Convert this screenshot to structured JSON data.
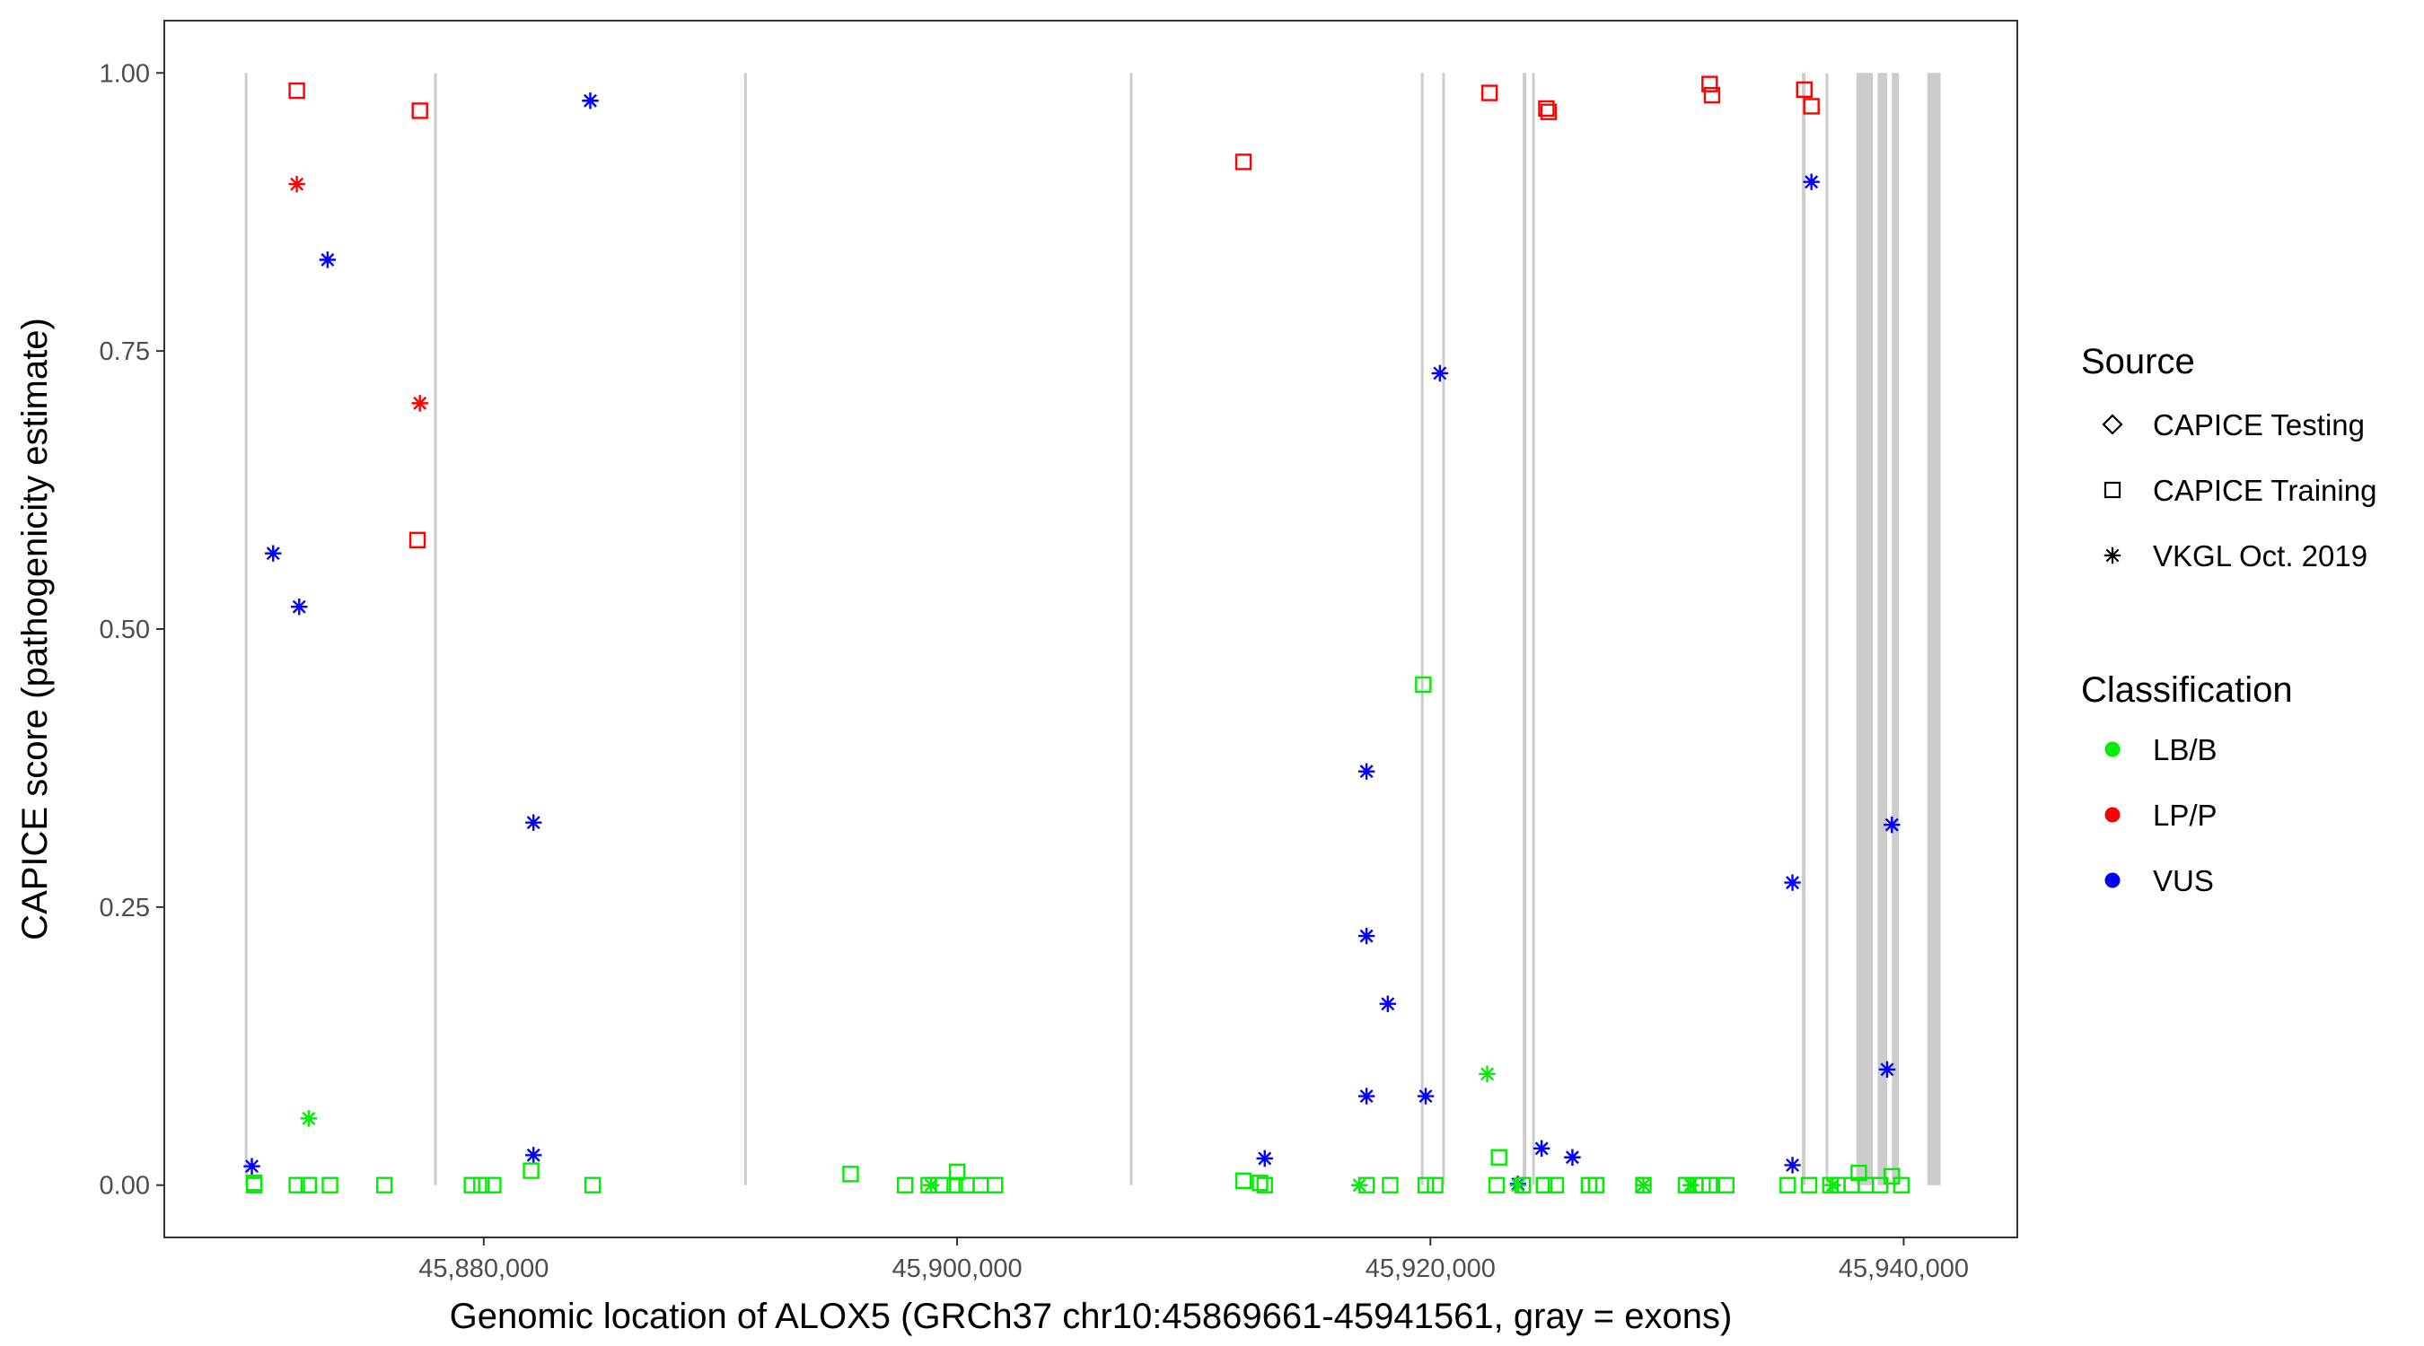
{
  "chart_data": {
    "type": "scatter",
    "title": "",
    "xlabel": "Genomic location of ALOX5 (GRCh37 chr10:45869661-45941561, gray = exons)",
    "ylabel": "CAPICE score (pathogenicity estimate)",
    "xlim": [
      45866500,
      45944800
    ],
    "ylim": [
      -0.047,
      1.047
    ],
    "x_ticks": [
      45880000,
      45900000,
      45920000,
      45940000
    ],
    "x_tick_labels": [
      "45,880,000",
      "45,900,000",
      "45,920,000",
      "45,940,000"
    ],
    "y_ticks": [
      0,
      0.25,
      0.5,
      0.75,
      1
    ],
    "y_tick_labels": [
      "0.00",
      "0.25",
      "0.50",
      "0.75",
      "1.00"
    ],
    "grid": false,
    "exon_color": "#cccccc",
    "exons": [
      [
        45869900,
        45870000
      ],
      [
        45877900,
        45878000
      ],
      [
        45891000,
        45891050
      ],
      [
        45907300,
        45907350
      ],
      [
        45919600,
        45919700
      ],
      [
        45920500,
        45920600
      ],
      [
        45923900,
        45924050
      ],
      [
        45924300,
        45924400
      ],
      [
        45935700,
        45935850
      ],
      [
        45936700,
        45936800
      ],
      [
        45938000,
        45938700
      ],
      [
        45938900,
        45939300
      ],
      [
        45939500,
        45939800
      ],
      [
        45941000,
        45941561
      ]
    ],
    "legend": {
      "placement": "right",
      "source_title": "Source",
      "source_items": [
        {
          "label": "CAPICE Testing",
          "shape": "diamond"
        },
        {
          "label": "CAPICE Training",
          "shape": "square"
        },
        {
          "label": "VKGL Oct. 2019",
          "shape": "asterisk"
        }
      ],
      "class_title": "Classification",
      "class_items": [
        {
          "label": "LB/B",
          "color": "#00ee00"
        },
        {
          "label": "LP/P",
          "color": "#ff0000"
        },
        {
          "label": "VUS",
          "color": "#0000ff"
        }
      ]
    },
    "series": [
      {
        "name": "CAPICE Training",
        "shape": "square",
        "color": "#ff0000",
        "class": "LP/P",
        "points": [
          [
            45872100,
            0.984
          ],
          [
            45877300,
            0.966
          ],
          [
            45877200,
            0.58
          ],
          [
            45912100,
            0.92
          ],
          [
            45922500,
            0.982
          ],
          [
            45924900,
            0.968
          ],
          [
            45925000,
            0.965
          ],
          [
            45931800,
            0.99
          ],
          [
            45931900,
            0.98
          ],
          [
            45935800,
            0.985
          ],
          [
            45936100,
            0.97
          ]
        ]
      },
      {
        "name": "VKGL Oct. 2019",
        "shape": "asterisk",
        "color": "#ff0000",
        "class": "LP/P",
        "points": [
          [
            45872100,
            0.9
          ],
          [
            45877300,
            0.703
          ]
        ]
      },
      {
        "name": "VKGL Oct. 2019",
        "shape": "asterisk",
        "color": "#0000ff",
        "class": "VUS",
        "points": [
          [
            45884500,
            0.975
          ],
          [
            45873400,
            0.832
          ],
          [
            45871100,
            0.568
          ],
          [
            45872200,
            0.52
          ],
          [
            45882100,
            0.326
          ],
          [
            45870200,
            0.017
          ],
          [
            45882100,
            0.027
          ],
          [
            45920400,
            0.73
          ],
          [
            45917300,
            0.372
          ],
          [
            45917300,
            0.224
          ],
          [
            45918200,
            0.163
          ],
          [
            45917300,
            0.08
          ],
          [
            45919800,
            0.08
          ],
          [
            45913000,
            0.024
          ],
          [
            45924700,
            0.033
          ],
          [
            45926000,
            0.025
          ],
          [
            45923700,
            0.001
          ],
          [
            45936100,
            0.902
          ],
          [
            45935300,
            0.272
          ],
          [
            45935300,
            0.018
          ],
          [
            45939500,
            0.324
          ],
          [
            45939300,
            0.104
          ]
        ]
      },
      {
        "name": "VKGL Oct. 2019",
        "shape": "asterisk",
        "color": "#00ee00",
        "class": "LB/B",
        "points": [
          [
            45872600,
            0.06
          ],
          [
            45922400,
            0.1
          ],
          [
            45917000,
            0.0
          ],
          [
            45898900,
            0.0
          ],
          [
            45929000,
            0.0
          ],
          [
            45931000,
            0.0
          ],
          [
            45937000,
            0.0
          ],
          [
            45923700,
            0.0
          ]
        ]
      },
      {
        "name": "CAPICE Training",
        "shape": "square",
        "color": "#00ee00",
        "class": "LB/B",
        "points": [
          [
            45870300,
            0.002
          ],
          [
            45870300,
            0.0
          ],
          [
            45872100,
            0.0
          ],
          [
            45872600,
            0.0
          ],
          [
            45873500,
            0.0
          ],
          [
            45875800,
            0.0
          ],
          [
            45879500,
            0.0
          ],
          [
            45879900,
            0.0
          ],
          [
            45880400,
            0.0
          ],
          [
            45882000,
            0.013
          ],
          [
            45884600,
            0.0
          ],
          [
            45895500,
            0.01
          ],
          [
            45897800,
            0.0
          ],
          [
            45898800,
            0.0
          ],
          [
            45899400,
            0.0
          ],
          [
            45899900,
            0.0
          ],
          [
            45900000,
            0.012
          ],
          [
            45900400,
            0.0
          ],
          [
            45901000,
            0.0
          ],
          [
            45901600,
            0.0
          ],
          [
            45912100,
            0.004
          ],
          [
            45912800,
            0.002
          ],
          [
            45913000,
            0.0
          ],
          [
            45917300,
            0.0
          ],
          [
            45918300,
            0.0
          ],
          [
            45919700,
            0.45
          ],
          [
            45919800,
            0.0
          ],
          [
            45920200,
            0.0
          ],
          [
            45922900,
            0.025
          ],
          [
            45922800,
            0.0
          ],
          [
            45923900,
            0.0
          ],
          [
            45924800,
            0.0
          ],
          [
            45925300,
            0.0
          ],
          [
            45926700,
            0.0
          ],
          [
            45927000,
            0.0
          ],
          [
            45929000,
            0.0
          ],
          [
            45930800,
            0.0
          ],
          [
            45931200,
            0.0
          ],
          [
            45931500,
            0.0
          ],
          [
            45931800,
            0.0
          ],
          [
            45932500,
            0.0
          ],
          [
            45935100,
            0.0
          ],
          [
            45936000,
            0.0
          ],
          [
            45936900,
            0.0
          ],
          [
            45937200,
            0.0
          ],
          [
            45937800,
            0.0
          ],
          [
            45938100,
            0.011
          ],
          [
            45938400,
            0.0
          ],
          [
            45939000,
            0.0
          ],
          [
            45939500,
            0.008
          ],
          [
            45939900,
            0.0
          ]
        ]
      }
    ]
  }
}
